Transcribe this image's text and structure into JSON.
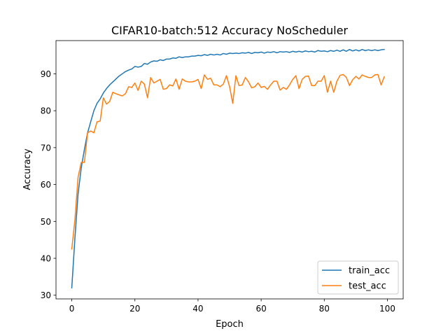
{
  "chart_data": {
    "type": "line",
    "title": "CIFAR10-batch:512 Accuracy NoScheduler",
    "xlabel": "Epoch",
    "ylabel": "Accuracy",
    "xlim": [
      -5,
      105
    ],
    "ylim": [
      29,
      99
    ],
    "xticks": [
      0,
      20,
      40,
      60,
      80,
      100
    ],
    "yticks": [
      30,
      40,
      50,
      60,
      70,
      80,
      90
    ],
    "grid": false,
    "legend_position": "lower-right",
    "series": [
      {
        "name": "train_acc",
        "color": "#1f77b4",
        "x": [
          0,
          1,
          2,
          3,
          4,
          5,
          6,
          7,
          8,
          9,
          10,
          11,
          12,
          13,
          14,
          15,
          16,
          17,
          18,
          19,
          20,
          21,
          22,
          23,
          24,
          25,
          26,
          27,
          28,
          29,
          30,
          31,
          32,
          33,
          34,
          35,
          36,
          37,
          38,
          39,
          40,
          41,
          42,
          43,
          44,
          45,
          46,
          47,
          48,
          49,
          50,
          51,
          52,
          53,
          54,
          55,
          56,
          57,
          58,
          59,
          60,
          61,
          62,
          63,
          64,
          65,
          66,
          67,
          68,
          69,
          70,
          71,
          72,
          73,
          74,
          75,
          76,
          77,
          78,
          79,
          80,
          81,
          82,
          83,
          84,
          85,
          86,
          87,
          88,
          89,
          90,
          91,
          92,
          93,
          94,
          95,
          96,
          97,
          98,
          99
        ],
        "values": [
          32.0,
          45.5,
          57.5,
          64.5,
          69.5,
          74.0,
          77.0,
          80.0,
          82.0,
          83.2,
          84.8,
          86.0,
          87.0,
          87.8,
          88.6,
          89.4,
          90.0,
          90.6,
          91.0,
          91.3,
          92.0,
          91.8,
          92.0,
          92.8,
          92.6,
          93.2,
          93.5,
          93.4,
          93.8,
          93.6,
          94.0,
          94.0,
          94.3,
          94.2,
          94.6,
          94.4,
          94.6,
          94.6,
          94.8,
          94.8,
          95.0,
          94.9,
          95.2,
          95.0,
          95.3,
          95.1,
          95.3,
          95.1,
          95.5,
          95.3,
          95.6,
          95.5,
          95.6,
          95.5,
          95.7,
          95.6,
          95.8,
          95.5,
          95.8,
          95.7,
          95.9,
          95.6,
          95.9,
          95.8,
          96.0,
          95.7,
          96.0,
          95.9,
          96.0,
          95.8,
          96.1,
          95.9,
          96.1,
          95.9,
          96.2,
          96.0,
          96.1,
          95.9,
          96.3,
          96.1,
          96.2,
          96.0,
          96.3,
          96.1,
          96.4,
          96.1,
          96.5,
          96.1,
          96.6,
          96.2,
          96.5,
          96.2,
          96.6,
          96.3,
          96.5,
          96.3,
          96.5,
          96.3,
          96.5,
          96.6
        ]
      },
      {
        "name": "test_acc",
        "color": "#ff7f0e",
        "x": [
          0,
          1,
          2,
          3,
          4,
          5,
          6,
          7,
          8,
          9,
          10,
          11,
          12,
          13,
          14,
          15,
          16,
          17,
          18,
          19,
          20,
          21,
          22,
          23,
          24,
          25,
          26,
          27,
          28,
          29,
          30,
          31,
          32,
          33,
          34,
          35,
          36,
          37,
          38,
          39,
          40,
          41,
          42,
          43,
          44,
          45,
          46,
          47,
          48,
          49,
          50,
          51,
          52,
          53,
          54,
          55,
          56,
          57,
          58,
          59,
          60,
          61,
          62,
          63,
          64,
          65,
          66,
          67,
          68,
          69,
          70,
          71,
          72,
          73,
          74,
          75,
          76,
          77,
          78,
          79,
          80,
          81,
          82,
          83,
          84,
          85,
          86,
          87,
          88,
          89,
          90,
          91,
          92,
          93,
          94,
          95,
          96,
          97,
          98,
          99
        ],
        "values": [
          42.5,
          50.5,
          62.0,
          66.0,
          66.0,
          74.0,
          74.5,
          74.0,
          77.0,
          77.2,
          83.5,
          81.8,
          82.5,
          85.0,
          84.6,
          84.3,
          84.0,
          84.6,
          86.5,
          86.3,
          87.5,
          85.5,
          88.0,
          87.2,
          83.5,
          89.0,
          87.5,
          88.0,
          88.5,
          85.8,
          86.0,
          87.0,
          86.7,
          88.6,
          85.8,
          88.6,
          88.0,
          87.8,
          87.8,
          88.0,
          88.5,
          86.0,
          89.7,
          88.5,
          88.8,
          87.0,
          87.0,
          86.5,
          87.2,
          89.5,
          86.5,
          82.0,
          89.5,
          86.8,
          87.0,
          89.0,
          87.8,
          86.2,
          86.5,
          87.5,
          86.3,
          86.6,
          85.8,
          87.0,
          88.0,
          88.0,
          85.6,
          86.3,
          85.8,
          87.0,
          88.5,
          89.5,
          86.0,
          88.5,
          89.3,
          89.4,
          86.8,
          86.8,
          88.0,
          88.0,
          89.5,
          85.0,
          88.0,
          85.0,
          88.0,
          89.6,
          89.8,
          89.0,
          86.8,
          88.4,
          89.3,
          88.6,
          89.7,
          89.3,
          89.0,
          89.0,
          89.7,
          89.8,
          87.0,
          89.2
        ]
      }
    ]
  }
}
